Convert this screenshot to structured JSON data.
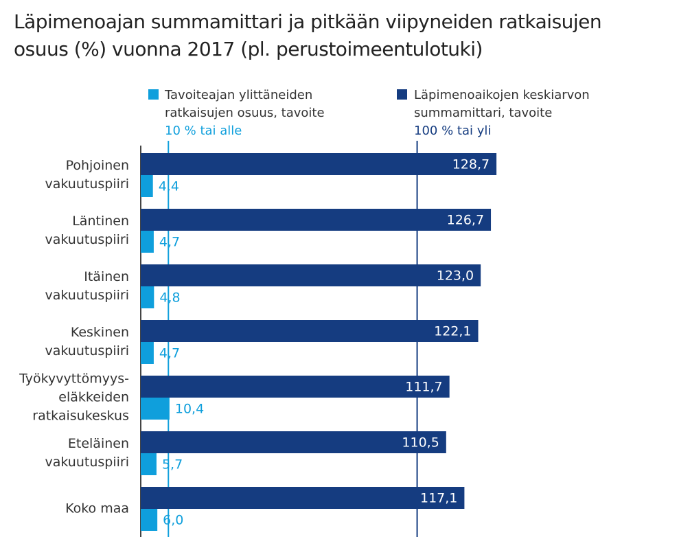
{
  "chart_data": {
    "type": "bar",
    "orientation": "horizontal",
    "title": "Läpimenoajan summamittari ja pitkään viipyneiden ratkaisujen\nosuus (%) vuonna 2017 (pl. perustoimeentulotuki)",
    "categories": [
      "Pohjoinen\nvakuutuspiiri",
      "Läntinen\nvakuutuspiiri",
      "Itäinen\nvakuutuspiiri",
      "Keskinen\nvakuutuspiiri",
      "Työkyvyttömyys-\neläkkeiden\nratkaisukeskus",
      "Eteläinen\nvakuutuspiiri",
      "Koko maa"
    ],
    "series": [
      {
        "name": "Läpimenoaikojen keskiarvon\nsummamittari, tavoite",
        "color": "#153c80",
        "values": [
          128.7,
          126.7,
          123.0,
          122.1,
          111.7,
          110.5,
          117.1
        ],
        "value_labels": [
          "128,7",
          "126,7",
          "123,0",
          "122,1",
          "111,7",
          "110,5",
          "117,1"
        ],
        "target": 100,
        "target_label": "100 % tai yli"
      },
      {
        "name": "Tavoiteajan ylittäneiden\nratkaisujen osuus, tavoite",
        "color": "#0f9fdc",
        "values": [
          4.4,
          4.7,
          4.8,
          4.7,
          10.4,
          5.7,
          6.0
        ],
        "value_labels": [
          "4,4",
          "4,7",
          "4,8",
          "4,7",
          "10,4",
          "5,7",
          "6,0"
        ],
        "target": 10,
        "target_label": "10 % tai alle"
      }
    ],
    "xlim": [
      0,
      195
    ]
  }
}
